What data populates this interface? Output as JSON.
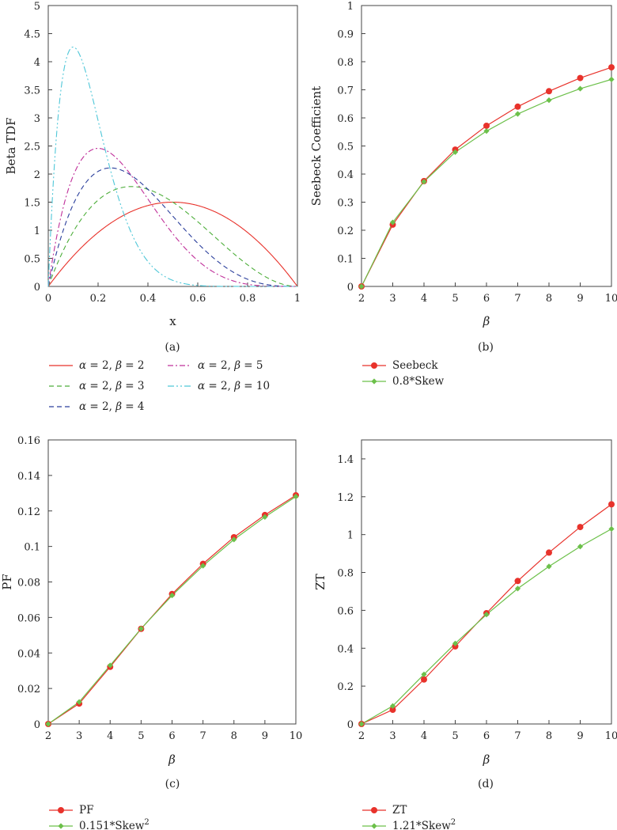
{
  "figure": {
    "panel_labels": [
      "(a)",
      "(b)",
      "(c)",
      "(d)"
    ]
  },
  "chart_data": [
    {
      "id": "a",
      "type": "line",
      "xlabel": "x",
      "ylabel": "Beta TDF",
      "xlim": [
        0,
        1
      ],
      "ylim": [
        0,
        5
      ],
      "xticks": [
        "0",
        "0.2",
        "0.4",
        "0.6",
        "0.8",
        "1"
      ],
      "yticks": [
        "0",
        "0.5",
        "1",
        "1.5",
        "2",
        "2.5",
        "3",
        "3.5",
        "4",
        "4.5",
        "5"
      ],
      "series": [
        {
          "name": "α = 2, β = 2",
          "alpha": 2,
          "beta": 2,
          "color": "#e8322b",
          "dash": "none"
        },
        {
          "name": "α = 2, β = 3",
          "alpha": 2,
          "beta": 3,
          "color": "#4dae3a",
          "dash": "6,4"
        },
        {
          "name": "α = 2, β = 4",
          "alpha": 2,
          "beta": 4,
          "color": "#2b3f9c",
          "dash": "6,4"
        },
        {
          "name": "α = 2, β = 5",
          "alpha": 2,
          "beta": 5,
          "color": "#c0309a",
          "dash": "7,3,2,3"
        },
        {
          "name": "α = 2, β = 10",
          "alpha": 2,
          "beta": 10,
          "color": "#4fc7d8",
          "dash": "8,3,2,3,2,3"
        }
      ]
    },
    {
      "id": "b",
      "type": "line",
      "xlabel": "β",
      "ylabel": "Seebeck Coefficient",
      "xlim": [
        2,
        10
      ],
      "ylim": [
        0,
        1
      ],
      "xticks": [
        "2",
        "3",
        "4",
        "5",
        "6",
        "7",
        "8",
        "9",
        "10"
      ],
      "yticks": [
        "0",
        "0.1",
        "0.2",
        "0.3",
        "0.4",
        "0.5",
        "0.6",
        "0.7",
        "0.8",
        "0.9",
        "1"
      ],
      "x": [
        2,
        3,
        4,
        5,
        6,
        7,
        8,
        9,
        10
      ],
      "series": [
        {
          "name": "Seebeck",
          "marker": "circle",
          "color": "#e8322b",
          "values": [
            0,
            0.22,
            0.375,
            0.487,
            0.572,
            0.64,
            0.695,
            0.742,
            0.78
          ]
        },
        {
          "name": "0.8*Skew",
          "marker": "diamond",
          "color": "#6cc04a",
          "values": [
            0,
            0.228,
            0.373,
            0.478,
            0.553,
            0.614,
            0.663,
            0.704,
            0.737
          ]
        }
      ]
    },
    {
      "id": "c",
      "type": "line",
      "xlabel": "β",
      "ylabel": "PF",
      "xlim": [
        2,
        10
      ],
      "ylim": [
        0,
        0.16
      ],
      "xticks": [
        "2",
        "3",
        "4",
        "5",
        "6",
        "7",
        "8",
        "9",
        "10"
      ],
      "yticks": [
        "0",
        "0.02",
        "0.04",
        "0.06",
        "0.08",
        "0.1",
        "0.12",
        "0.14",
        "0.16"
      ],
      "x": [
        2,
        3,
        4,
        5,
        6,
        7,
        8,
        9,
        10
      ],
      "series": [
        {
          "name": "PF",
          "marker": "circle",
          "color": "#e8322b",
          "values": [
            0,
            0.0115,
            0.0322,
            0.0536,
            0.0732,
            0.0902,
            0.1052,
            0.1177,
            0.1288
          ]
        },
        {
          "name": "0.151*Skew",
          "superscript": "2",
          "marker": "diamond",
          "color": "#6cc04a",
          "values": [
            0,
            0.0124,
            0.033,
            0.0537,
            0.0724,
            0.0891,
            0.1039,
            0.1166,
            0.1281
          ]
        }
      ]
    },
    {
      "id": "d",
      "type": "line",
      "xlabel": "β",
      "ylabel": "ZT",
      "xlim": [
        2,
        10
      ],
      "ylim": [
        0,
        1.5
      ],
      "xticks": [
        "2",
        "3",
        "4",
        "5",
        "6",
        "7",
        "8",
        "9",
        "10"
      ],
      "yticks": [
        "0",
        "0.2",
        "0.4",
        "0.6",
        "0.8",
        "1",
        "1.2",
        "1.4"
      ],
      "x": [
        2,
        3,
        4,
        5,
        6,
        7,
        8,
        9,
        10
      ],
      "series": [
        {
          "name": "ZT",
          "marker": "circle",
          "color": "#e8322b",
          "values": [
            0,
            0.075,
            0.235,
            0.41,
            0.585,
            0.755,
            0.905,
            1.04,
            1.16
          ]
        },
        {
          "name": "1.21*Skew",
          "superscript": "2",
          "marker": "diamond",
          "color": "#6cc04a",
          "values": [
            0,
            0.095,
            0.262,
            0.425,
            0.578,
            0.715,
            0.832,
            0.937,
            1.03
          ]
        }
      ]
    }
  ]
}
